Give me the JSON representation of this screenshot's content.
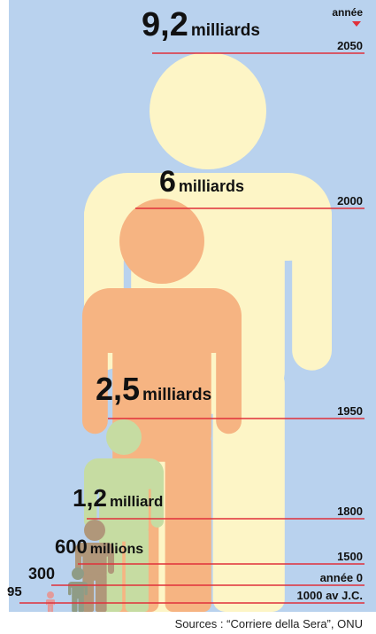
{
  "header": {
    "label": "année"
  },
  "entries": [
    {
      "number": "9,2",
      "unit": "milliards",
      "year": "2050"
    },
    {
      "number": "6",
      "unit": "milliards",
      "year": "2000"
    },
    {
      "number": "2,5",
      "unit": "milliards",
      "year": "1950"
    },
    {
      "number": "1,2",
      "unit": "milliard",
      "year": "1800"
    },
    {
      "number": "600",
      "unit": "millions",
      "year": "1500"
    },
    {
      "number": "300",
      "year": "année 0"
    },
    {
      "number": "95",
      "year": "1000  av J.C."
    }
  ],
  "source": "Sources : “Corriere della Sera”, ONU"
}
